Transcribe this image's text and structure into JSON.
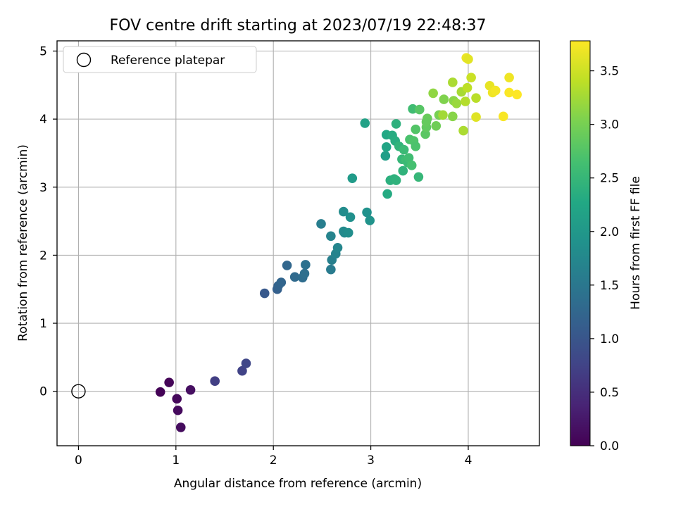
{
  "chart_data": {
    "type": "scatter",
    "title": "FOV centre drift starting at 2023/07/19 22:48:37",
    "xlabel": "Angular distance from reference (arcmin)",
    "ylabel": "Rotation from reference (arcmin)",
    "xlim": [
      -0.22,
      4.73
    ],
    "ylim": [
      -0.8,
      5.15
    ],
    "xticks": [
      0,
      1,
      2,
      3,
      4
    ],
    "yticks": [
      0,
      1,
      2,
      3,
      4,
      5
    ],
    "grid": true,
    "legend": {
      "placement": "top-left",
      "label": "Reference platepar"
    },
    "reference_point": {
      "x": 0,
      "y": 0
    },
    "colorbar": {
      "label": "Hours from first FF file",
      "colormap": "viridis",
      "range": [
        0,
        3.78
      ],
      "ticks": [
        "0.0",
        "0.5",
        "1.0",
        "1.5",
        "2.0",
        "2.5",
        "3.0",
        "3.5"
      ]
    },
    "points": [
      {
        "x": 0.84,
        "y": -0.01,
        "c": 0.02
      },
      {
        "x": 0.93,
        "y": 0.13,
        "c": 0.05
      },
      {
        "x": 1.01,
        "y": -0.11,
        "c": 0.08
      },
      {
        "x": 1.02,
        "y": -0.28,
        "c": 0.1
      },
      {
        "x": 1.05,
        "y": -0.53,
        "c": 0.12
      },
      {
        "x": 1.15,
        "y": 0.02,
        "c": 0.15
      },
      {
        "x": 1.4,
        "y": 0.15,
        "c": 0.7
      },
      {
        "x": 1.68,
        "y": 0.3,
        "c": 0.75
      },
      {
        "x": 1.72,
        "y": 0.41,
        "c": 0.8
      },
      {
        "x": 1.91,
        "y": 1.44,
        "c": 1.05
      },
      {
        "x": 2.04,
        "y": 1.5,
        "c": 1.15
      },
      {
        "x": 2.05,
        "y": 1.55,
        "c": 1.2
      },
      {
        "x": 2.08,
        "y": 1.6,
        "c": 1.22
      },
      {
        "x": 2.14,
        "y": 1.85,
        "c": 1.25
      },
      {
        "x": 2.22,
        "y": 1.68,
        "c": 1.3
      },
      {
        "x": 2.3,
        "y": 1.67,
        "c": 1.35
      },
      {
        "x": 2.32,
        "y": 1.73,
        "c": 1.37
      },
      {
        "x": 2.33,
        "y": 1.86,
        "c": 1.4
      },
      {
        "x": 2.49,
        "y": 2.46,
        "c": 1.6
      },
      {
        "x": 2.59,
        "y": 1.79,
        "c": 1.55
      },
      {
        "x": 2.6,
        "y": 1.93,
        "c": 1.62
      },
      {
        "x": 2.59,
        "y": 2.28,
        "c": 1.7
      },
      {
        "x": 2.64,
        "y": 2.02,
        "c": 1.68
      },
      {
        "x": 2.66,
        "y": 2.11,
        "c": 1.72
      },
      {
        "x": 2.72,
        "y": 2.35,
        "c": 1.8
      },
      {
        "x": 2.73,
        "y": 2.33,
        "c": 1.78
      },
      {
        "x": 2.72,
        "y": 2.64,
        "c": 1.82
      },
      {
        "x": 2.77,
        "y": 2.33,
        "c": 1.85
      },
      {
        "x": 2.79,
        "y": 2.56,
        "c": 1.88
      },
      {
        "x": 2.81,
        "y": 3.13,
        "c": 2.05
      },
      {
        "x": 2.96,
        "y": 2.63,
        "c": 1.9
      },
      {
        "x": 2.99,
        "y": 2.51,
        "c": 1.92
      },
      {
        "x": 2.94,
        "y": 3.94,
        "c": 2.15
      },
      {
        "x": 3.15,
        "y": 3.46,
        "c": 2.1
      },
      {
        "x": 3.16,
        "y": 3.59,
        "c": 2.2
      },
      {
        "x": 3.16,
        "y": 3.77,
        "c": 2.25
      },
      {
        "x": 3.17,
        "y": 2.9,
        "c": 2.3
      },
      {
        "x": 3.2,
        "y": 3.1,
        "c": 2.38
      },
      {
        "x": 3.22,
        "y": 3.76,
        "c": 2.32
      },
      {
        "x": 3.24,
        "y": 3.12,
        "c": 2.4
      },
      {
        "x": 3.26,
        "y": 3.1,
        "c": 2.42
      },
      {
        "x": 3.25,
        "y": 3.68,
        "c": 2.35
      },
      {
        "x": 3.26,
        "y": 3.93,
        "c": 2.4
      },
      {
        "x": 3.29,
        "y": 3.6,
        "c": 2.45
      },
      {
        "x": 3.32,
        "y": 3.41,
        "c": 2.5
      },
      {
        "x": 3.33,
        "y": 3.24,
        "c": 2.44
      },
      {
        "x": 3.34,
        "y": 3.55,
        "c": 2.55
      },
      {
        "x": 3.36,
        "y": 3.4,
        "c": 2.58
      },
      {
        "x": 3.38,
        "y": 3.36,
        "c": 2.55
      },
      {
        "x": 3.39,
        "y": 3.43,
        "c": 2.6
      },
      {
        "x": 3.4,
        "y": 3.7,
        "c": 2.68
      },
      {
        "x": 3.42,
        "y": 3.32,
        "c": 2.65
      },
      {
        "x": 3.43,
        "y": 4.15,
        "c": 2.6
      },
      {
        "x": 3.44,
        "y": 3.68,
        "c": 2.72
      },
      {
        "x": 3.46,
        "y": 3.6,
        "c": 2.7
      },
      {
        "x": 3.46,
        "y": 3.85,
        "c": 2.75
      },
      {
        "x": 3.49,
        "y": 3.15,
        "c": 2.5
      },
      {
        "x": 3.5,
        "y": 4.14,
        "c": 2.78
      },
      {
        "x": 3.56,
        "y": 3.78,
        "c": 2.8
      },
      {
        "x": 3.57,
        "y": 3.88,
        "c": 2.85
      },
      {
        "x": 3.58,
        "y": 4.01,
        "c": 2.9
      },
      {
        "x": 3.57,
        "y": 3.96,
        "c": 2.88
      },
      {
        "x": 3.64,
        "y": 4.38,
        "c": 3.15
      },
      {
        "x": 3.67,
        "y": 3.9,
        "c": 2.95
      },
      {
        "x": 3.7,
        "y": 4.06,
        "c": 3.0
      },
      {
        "x": 3.74,
        "y": 4.06,
        "c": 3.25
      },
      {
        "x": 3.75,
        "y": 4.29,
        "c": 3.05
      },
      {
        "x": 3.84,
        "y": 4.04,
        "c": 3.1
      },
      {
        "x": 3.84,
        "y": 4.54,
        "c": 3.3
      },
      {
        "x": 3.85,
        "y": 4.27,
        "c": 3.12
      },
      {
        "x": 3.88,
        "y": 4.23,
        "c": 3.2
      },
      {
        "x": 3.93,
        "y": 4.4,
        "c": 3.28
      },
      {
        "x": 3.95,
        "y": 3.83,
        "c": 3.3
      },
      {
        "x": 3.97,
        "y": 4.26,
        "c": 3.35
      },
      {
        "x": 3.98,
        "y": 4.9,
        "c": 3.68
      },
      {
        "x": 3.99,
        "y": 4.46,
        "c": 3.4
      },
      {
        "x": 4.0,
        "y": 4.88,
        "c": 3.62
      },
      {
        "x": 4.03,
        "y": 4.61,
        "c": 3.48
      },
      {
        "x": 4.08,
        "y": 4.03,
        "c": 3.6
      },
      {
        "x": 4.08,
        "y": 4.31,
        "c": 3.38
      },
      {
        "x": 4.22,
        "y": 4.49,
        "c": 3.65
      },
      {
        "x": 4.25,
        "y": 4.39,
        "c": 3.7
      },
      {
        "x": 4.28,
        "y": 4.42,
        "c": 3.72
      },
      {
        "x": 4.36,
        "y": 4.04,
        "c": 3.75
      },
      {
        "x": 4.42,
        "y": 4.61,
        "c": 3.7
      },
      {
        "x": 4.42,
        "y": 4.39,
        "c": 3.76
      },
      {
        "x": 4.5,
        "y": 4.36,
        "c": 3.78
      }
    ]
  }
}
